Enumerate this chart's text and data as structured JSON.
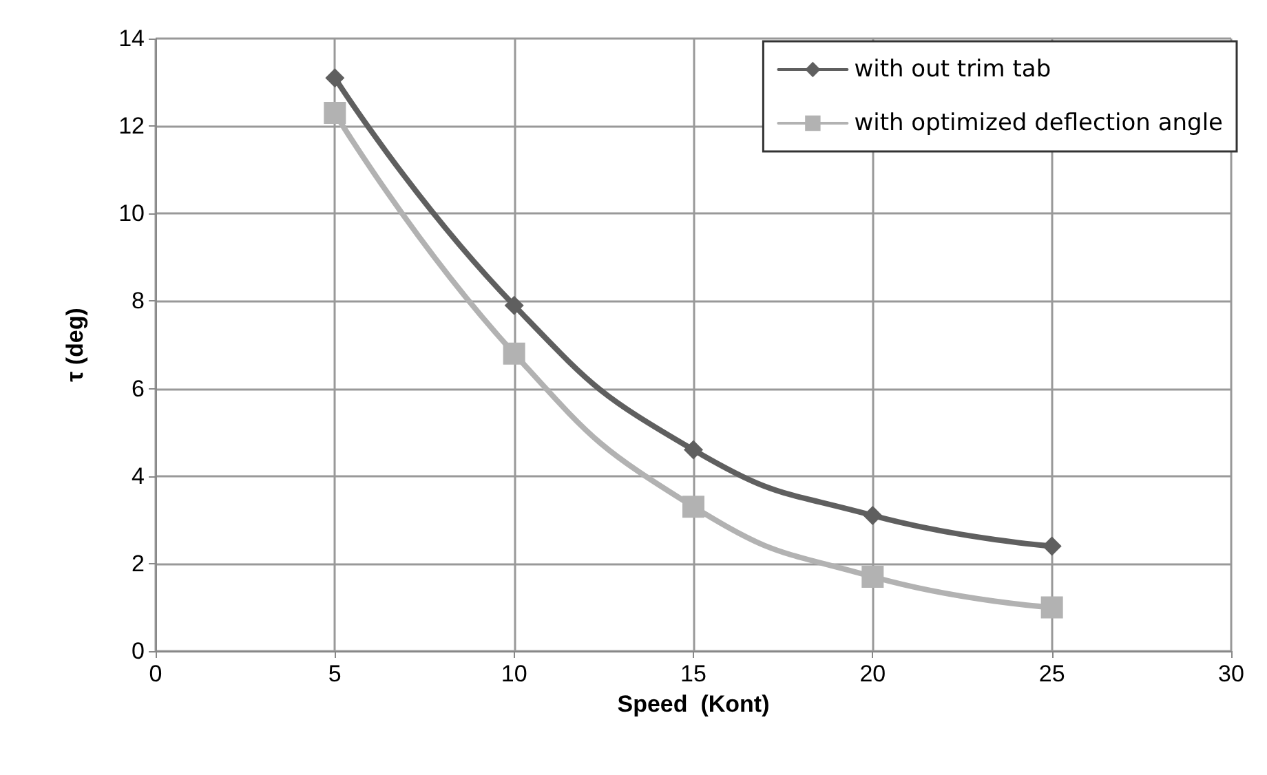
{
  "chart_data": {
    "type": "line",
    "xlabel": "Speed  (Kont)",
    "ylabel": "τ (deg)",
    "x": [
      5,
      10,
      15,
      20,
      25
    ],
    "series": [
      {
        "name": "with out trim tab",
        "color": "#5f5f5f",
        "marker": "diamond",
        "values": [
          13.1,
          7.9,
          4.6,
          3.1,
          2.4
        ]
      },
      {
        "name": "with optimized deflection angle",
        "color": "#b2b2b2",
        "marker": "square",
        "values": [
          12.3,
          6.8,
          3.3,
          1.7,
          1.0
        ]
      }
    ],
    "xlim": [
      0,
      30
    ],
    "xticks": [
      0,
      5,
      10,
      15,
      20,
      25,
      30
    ],
    "ylim": [
      0,
      14
    ],
    "yticks": [
      0,
      2,
      4,
      6,
      8,
      10,
      12,
      14
    ],
    "grid": true,
    "legend": "top right",
    "line_style": "solid"
  }
}
